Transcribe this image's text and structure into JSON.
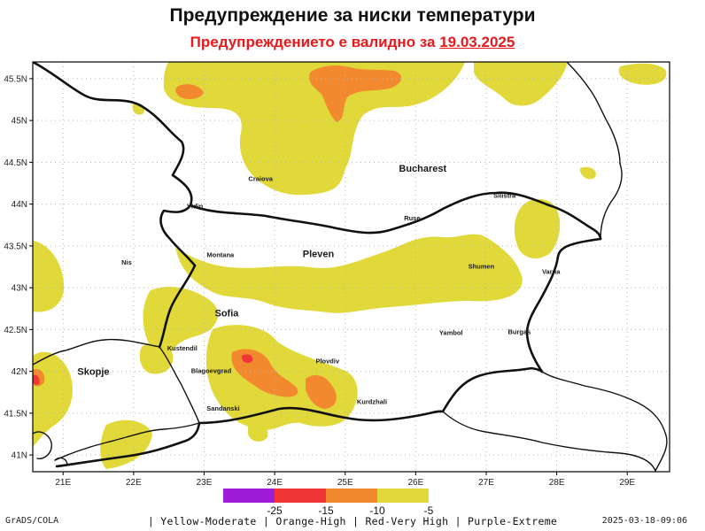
{
  "header": {
    "title": "Предупреждение за ниски температури",
    "validity_prefix": "Предупреждението е валидно за",
    "validity_date": "19.03.2025"
  },
  "map": {
    "longitude_ticks": [
      "21E",
      "22E",
      "23E",
      "24E",
      "25E",
      "26E",
      "27E",
      "28E",
      "29E"
    ],
    "latitude_ticks": [
      "45.5N",
      "45N",
      "44.5N",
      "44N",
      "43.5N",
      "43N",
      "42.5N",
      "42N",
      "41.5N",
      "41N"
    ],
    "cities": [
      {
        "name": "Craiova",
        "lon": 23.8,
        "lat": 44.32
      },
      {
        "name": "Bucharest",
        "lon": 26.1,
        "lat": 44.43
      },
      {
        "name": "Vidin",
        "lon": 22.87,
        "lat": 43.99
      },
      {
        "name": "Ruse",
        "lon": 25.95,
        "lat": 43.85
      },
      {
        "name": "Silistra",
        "lon": 27.26,
        "lat": 44.12
      },
      {
        "name": "Montana",
        "lon": 23.23,
        "lat": 43.41
      },
      {
        "name": "Pleven",
        "lon": 24.62,
        "lat": 43.41
      },
      {
        "name": "Nis",
        "lon": 21.9,
        "lat": 43.32
      },
      {
        "name": "Shumen",
        "lon": 26.93,
        "lat": 43.27
      },
      {
        "name": "Varna",
        "lon": 27.92,
        "lat": 43.21
      },
      {
        "name": "Sofia",
        "lon": 23.32,
        "lat": 42.7
      },
      {
        "name": "Yambol",
        "lon": 26.5,
        "lat": 42.48
      },
      {
        "name": "Burgas",
        "lon": 27.47,
        "lat": 42.49
      },
      {
        "name": "Kustendil",
        "lon": 22.69,
        "lat": 42.29
      },
      {
        "name": "Plovdiv",
        "lon": 24.75,
        "lat": 42.14
      },
      {
        "name": "Skopje",
        "lon": 21.43,
        "lat": 42.0
      },
      {
        "name": "Blagoevgrad",
        "lon": 23.1,
        "lat": 42.02
      },
      {
        "name": "Kurdzhali",
        "lon": 25.38,
        "lat": 41.65
      },
      {
        "name": "Sandanski",
        "lon": 23.27,
        "lat": 41.57
      }
    ]
  },
  "legend": {
    "tick_labels": [
      "-25",
      "-15",
      "-10",
      "-5"
    ],
    "caption": "| Yellow-Moderate | Orange-High | Red-Very High | Purple-Extreme",
    "colors": {
      "purple": "#9c1cd8",
      "red": "#ef3535",
      "orange": "#f2892f",
      "yellow": "#e1d93a"
    }
  },
  "footer": {
    "credit": "GrADS/COLA",
    "timestamp": "2025-03-18-09:06"
  }
}
